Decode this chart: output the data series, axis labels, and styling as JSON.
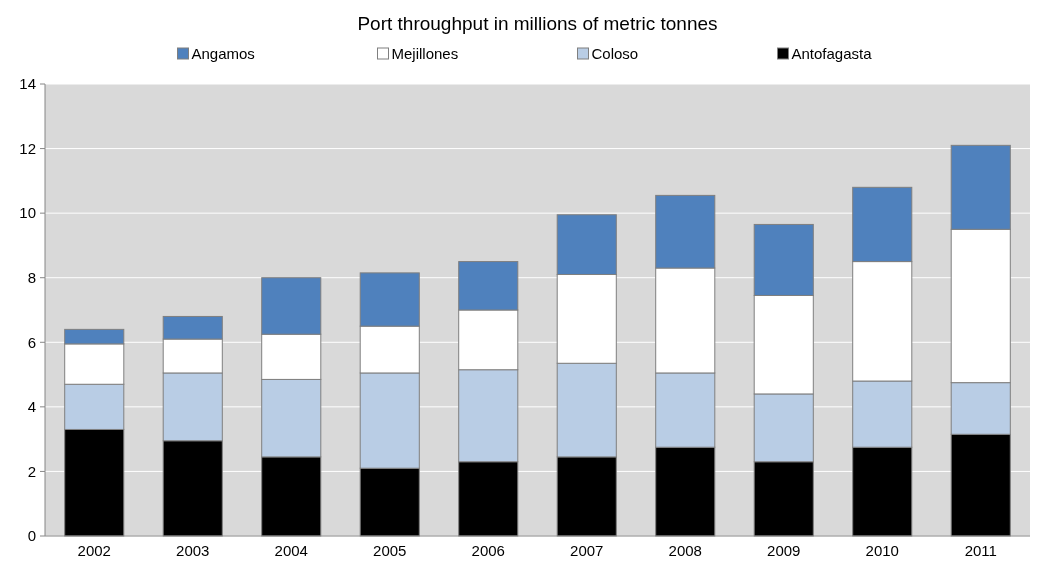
{
  "chart_data": {
    "type": "bar",
    "title": "Port throughput in millions of metric tonnes",
    "stacked": true,
    "categories": [
      "2002",
      "2003",
      "2004",
      "2005",
      "2006",
      "2007",
      "2008",
      "2009",
      "2010",
      "2011"
    ],
    "series": [
      {
        "name": "Antofagasta",
        "color": "#000000",
        "values": [
          3.3,
          2.95,
          2.45,
          2.1,
          2.3,
          2.45,
          2.75,
          2.3,
          2.75,
          3.15
        ]
      },
      {
        "name": "Coloso",
        "color": "#b9cde5",
        "values": [
          1.4,
          2.1,
          2.4,
          2.95,
          2.85,
          2.9,
          2.3,
          2.1,
          2.05,
          1.6
        ]
      },
      {
        "name": "Mejillones",
        "color": "#ffffff",
        "values": [
          1.25,
          1.05,
          1.4,
          1.45,
          1.85,
          2.75,
          3.25,
          3.05,
          3.7,
          4.75
        ]
      },
      {
        "name": "Angamos",
        "color": "#4f81bd",
        "values": [
          0.45,
          0.7,
          1.75,
          1.65,
          1.5,
          1.85,
          2.25,
          2.2,
          2.3,
          2.6
        ]
      }
    ],
    "ylim": [
      0,
      14
    ],
    "yticks": [
      0,
      2,
      4,
      6,
      8,
      10,
      12,
      14
    ],
    "grid": "y",
    "legend": "top"
  }
}
